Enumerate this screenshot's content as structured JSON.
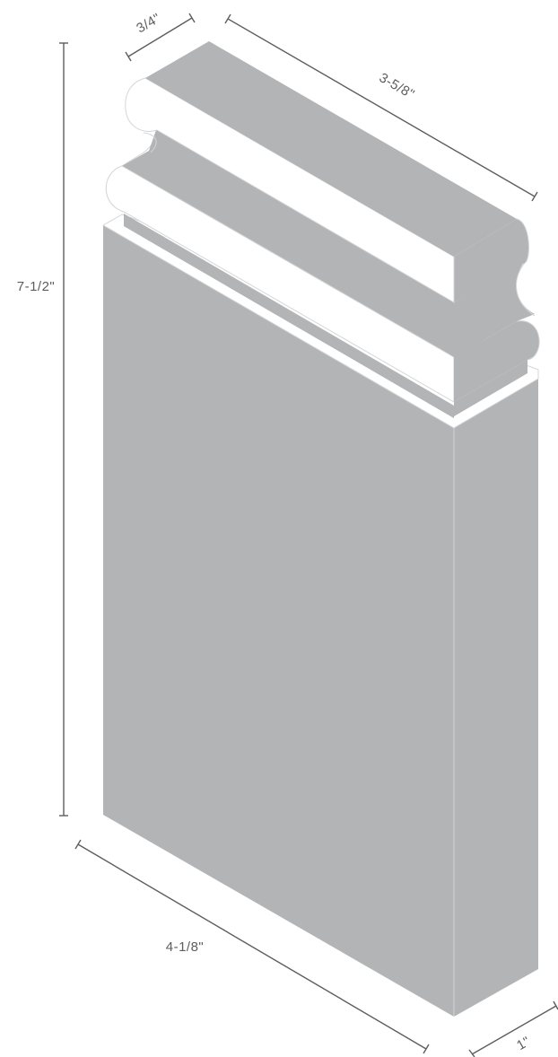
{
  "colors": {
    "background": "#ffffff",
    "molding_fill": "#b3b4b6",
    "light_face": "#ffffff",
    "edge": "#d4d5d6",
    "dimension": "#5c5d60"
  },
  "dimensions": {
    "height": "7-1/2\"",
    "width": "4-1/8\"",
    "top_length": "3-5/8\"",
    "top_depth": "3/4\"",
    "thickness": "1\""
  }
}
